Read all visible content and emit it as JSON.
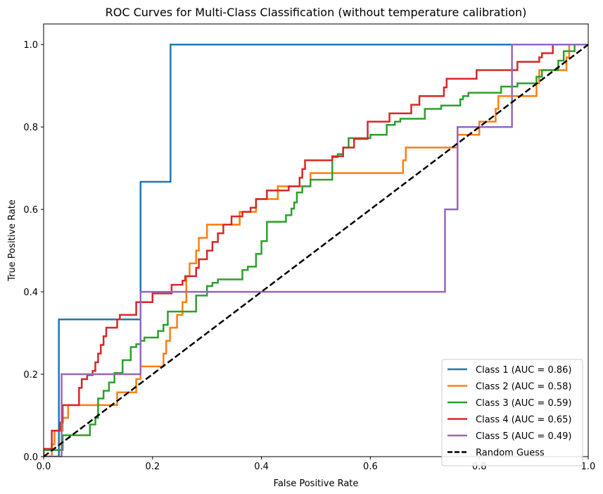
{
  "chart_data": {
    "type": "line",
    "title": "ROC Curves for Multi-Class Classification (without temperature calibration)",
    "xlabel": "False Positive Rate",
    "ylabel": "True Positive Rate",
    "xlim": [
      0,
      1
    ],
    "ylim": [
      0,
      1.05
    ],
    "xticks": [
      0,
      0.2,
      0.4,
      0.6,
      0.8,
      1
    ],
    "yticks": [
      0,
      0.2,
      0.4,
      0.6,
      0.8,
      1
    ],
    "xtick_labels": [
      "0.0",
      "0.2",
      "0.4",
      "0.6",
      "0.8",
      "1.0"
    ],
    "ytick_labels": [
      "0.0",
      "0.2",
      "0.4",
      "0.6",
      "0.8",
      "1.0"
    ],
    "grid": false,
    "legend_position": "lower-right",
    "series": [
      {
        "name": "Class 1 (AUC = 0.86)",
        "color": "#1f77b4",
        "points": [
          [
            0,
            0
          ],
          [
            0.028,
            0
          ],
          [
            0.028,
            0.333
          ],
          [
            0.178,
            0.333
          ],
          [
            0.178,
            0.667
          ],
          [
            0.233,
            0.667
          ],
          [
            0.233,
            1.0
          ],
          [
            1.0,
            1.0
          ]
        ]
      },
      {
        "name": "Class 2 (AUC = 0.58)",
        "color": "#ff7f0e",
        "points": [
          [
            0,
            0
          ],
          [
            0.015,
            0
          ],
          [
            0.015,
            0.03
          ],
          [
            0.02,
            0.03
          ],
          [
            0.02,
            0.063
          ],
          [
            0.035,
            0.063
          ],
          [
            0.035,
            0.094
          ],
          [
            0.045,
            0.094
          ],
          [
            0.045,
            0.125
          ],
          [
            0.135,
            0.125
          ],
          [
            0.135,
            0.156
          ],
          [
            0.17,
            0.156
          ],
          [
            0.17,
            0.188
          ],
          [
            0.178,
            0.188
          ],
          [
            0.178,
            0.219
          ],
          [
            0.22,
            0.219
          ],
          [
            0.22,
            0.25
          ],
          [
            0.225,
            0.25
          ],
          [
            0.225,
            0.281
          ],
          [
            0.232,
            0.281
          ],
          [
            0.232,
            0.313
          ],
          [
            0.245,
            0.313
          ],
          [
            0.245,
            0.344
          ],
          [
            0.255,
            0.344
          ],
          [
            0.255,
            0.375
          ],
          [
            0.262,
            0.375
          ],
          [
            0.262,
            0.406
          ],
          [
            0.262,
            0.406
          ],
          [
            0.262,
            0.438
          ],
          [
            0.268,
            0.438
          ],
          [
            0.268,
            0.469
          ],
          [
            0.28,
            0.469
          ],
          [
            0.28,
            0.5
          ],
          [
            0.285,
            0.5
          ],
          [
            0.285,
            0.531
          ],
          [
            0.3,
            0.531
          ],
          [
            0.3,
            0.563
          ],
          [
            0.36,
            0.563
          ],
          [
            0.36,
            0.594
          ],
          [
            0.39,
            0.594
          ],
          [
            0.39,
            0.625
          ],
          [
            0.43,
            0.625
          ],
          [
            0.43,
            0.656
          ],
          [
            0.49,
            0.656
          ],
          [
            0.49,
            0.688
          ],
          [
            0.66,
            0.688
          ],
          [
            0.66,
            0.719
          ],
          [
            0.665,
            0.719
          ],
          [
            0.665,
            0.75
          ],
          [
            0.76,
            0.75
          ],
          [
            0.76,
            0.781
          ],
          [
            0.8,
            0.781
          ],
          [
            0.8,
            0.813
          ],
          [
            0.83,
            0.813
          ],
          [
            0.83,
            0.844
          ],
          [
            0.835,
            0.844
          ],
          [
            0.835,
            0.875
          ],
          [
            0.905,
            0.875
          ],
          [
            0.905,
            0.906
          ],
          [
            0.91,
            0.906
          ],
          [
            0.91,
            0.938
          ],
          [
            0.96,
            0.938
          ],
          [
            0.96,
            0.969
          ],
          [
            0.965,
            0.969
          ],
          [
            0.965,
            1.0
          ],
          [
            1.0,
            1.0
          ]
        ]
      },
      {
        "name": "Class 3 (AUC = 0.59)",
        "color": "#2ca02c",
        "points": [
          [
            0,
            0
          ],
          [
            0.0,
            0.016
          ],
          [
            0.035,
            0.016
          ],
          [
            0.035,
            0.052
          ],
          [
            0.085,
            0.052
          ],
          [
            0.085,
            0.078
          ],
          [
            0.095,
            0.078
          ],
          [
            0.095,
            0.094
          ],
          [
            0.1,
            0.094
          ],
          [
            0.1,
            0.141
          ],
          [
            0.11,
            0.141
          ],
          [
            0.11,
            0.16
          ],
          [
            0.12,
            0.16
          ],
          [
            0.12,
            0.18
          ],
          [
            0.13,
            0.18
          ],
          [
            0.13,
            0.203
          ],
          [
            0.145,
            0.203
          ],
          [
            0.145,
            0.234
          ],
          [
            0.16,
            0.234
          ],
          [
            0.16,
            0.266
          ],
          [
            0.17,
            0.266
          ],
          [
            0.17,
            0.273
          ],
          [
            0.178,
            0.273
          ],
          [
            0.178,
            0.281
          ],
          [
            0.185,
            0.281
          ],
          [
            0.185,
            0.289
          ],
          [
            0.21,
            0.289
          ],
          [
            0.21,
            0.305
          ],
          [
            0.22,
            0.305
          ],
          [
            0.22,
            0.32
          ],
          [
            0.228,
            0.32
          ],
          [
            0.228,
            0.352
          ],
          [
            0.28,
            0.352
          ],
          [
            0.28,
            0.391
          ],
          [
            0.3,
            0.391
          ],
          [
            0.3,
            0.414
          ],
          [
            0.31,
            0.414
          ],
          [
            0.31,
            0.422
          ],
          [
            0.32,
            0.422
          ],
          [
            0.32,
            0.43
          ],
          [
            0.365,
            0.43
          ],
          [
            0.365,
            0.453
          ],
          [
            0.375,
            0.453
          ],
          [
            0.375,
            0.461
          ],
          [
            0.39,
            0.461
          ],
          [
            0.39,
            0.492
          ],
          [
            0.4,
            0.492
          ],
          [
            0.4,
            0.523
          ],
          [
            0.41,
            0.523
          ],
          [
            0.41,
            0.57
          ],
          [
            0.445,
            0.57
          ],
          [
            0.445,
            0.586
          ],
          [
            0.455,
            0.586
          ],
          [
            0.455,
            0.602
          ],
          [
            0.46,
            0.602
          ],
          [
            0.46,
            0.617
          ],
          [
            0.465,
            0.617
          ],
          [
            0.465,
            0.641
          ],
          [
            0.475,
            0.641
          ],
          [
            0.475,
            0.656
          ],
          [
            0.49,
            0.656
          ],
          [
            0.49,
            0.672
          ],
          [
            0.53,
            0.672
          ],
          [
            0.53,
            0.727
          ],
          [
            0.54,
            0.727
          ],
          [
            0.54,
            0.734
          ],
          [
            0.55,
            0.734
          ],
          [
            0.55,
            0.75
          ],
          [
            0.56,
            0.75
          ],
          [
            0.56,
            0.773
          ],
          [
            0.6,
            0.773
          ],
          [
            0.6,
            0.781
          ],
          [
            0.63,
            0.781
          ],
          [
            0.63,
            0.805
          ],
          [
            0.645,
            0.805
          ],
          [
            0.645,
            0.813
          ],
          [
            0.655,
            0.813
          ],
          [
            0.655,
            0.82
          ],
          [
            0.7,
            0.82
          ],
          [
            0.7,
            0.844
          ],
          [
            0.73,
            0.844
          ],
          [
            0.73,
            0.852
          ],
          [
            0.765,
            0.852
          ],
          [
            0.765,
            0.867
          ],
          [
            0.77,
            0.867
          ],
          [
            0.77,
            0.875
          ],
          [
            0.78,
            0.875
          ],
          [
            0.78,
            0.883
          ],
          [
            0.84,
            0.883
          ],
          [
            0.84,
            0.898
          ],
          [
            0.87,
            0.898
          ],
          [
            0.87,
            0.906
          ],
          [
            0.905,
            0.906
          ],
          [
            0.905,
            0.922
          ],
          [
            0.915,
            0.922
          ],
          [
            0.915,
            0.938
          ],
          [
            0.945,
            0.938
          ],
          [
            0.945,
            0.961
          ],
          [
            0.955,
            0.961
          ],
          [
            0.955,
            0.984
          ],
          [
            0.975,
            0.984
          ],
          [
            0.975,
            1.0
          ],
          [
            1.0,
            1.0
          ]
        ]
      },
      {
        "name": "Class 4 (AUC = 0.65)",
        "color": "#d62728",
        "points": [
          [
            0,
            0
          ],
          [
            0.0,
            0.019
          ],
          [
            0.015,
            0.019
          ],
          [
            0.015,
            0.063
          ],
          [
            0.03,
            0.063
          ],
          [
            0.03,
            0.083
          ],
          [
            0.035,
            0.083
          ],
          [
            0.035,
            0.125
          ],
          [
            0.065,
            0.125
          ],
          [
            0.065,
            0.167
          ],
          [
            0.07,
            0.167
          ],
          [
            0.07,
            0.188
          ],
          [
            0.08,
            0.188
          ],
          [
            0.08,
            0.198
          ],
          [
            0.09,
            0.198
          ],
          [
            0.09,
            0.208
          ],
          [
            0.095,
            0.208
          ],
          [
            0.095,
            0.229
          ],
          [
            0.1,
            0.229
          ],
          [
            0.1,
            0.25
          ],
          [
            0.105,
            0.25
          ],
          [
            0.105,
            0.271
          ],
          [
            0.11,
            0.271
          ],
          [
            0.11,
            0.292
          ],
          [
            0.115,
            0.292
          ],
          [
            0.115,
            0.313
          ],
          [
            0.135,
            0.313
          ],
          [
            0.135,
            0.333
          ],
          [
            0.14,
            0.333
          ],
          [
            0.14,
            0.344
          ],
          [
            0.17,
            0.344
          ],
          [
            0.17,
            0.375
          ],
          [
            0.2,
            0.375
          ],
          [
            0.2,
            0.396
          ],
          [
            0.235,
            0.396
          ],
          [
            0.235,
            0.417
          ],
          [
            0.255,
            0.417
          ],
          [
            0.255,
            0.427
          ],
          [
            0.26,
            0.427
          ],
          [
            0.26,
            0.438
          ],
          [
            0.28,
            0.438
          ],
          [
            0.28,
            0.458
          ],
          [
            0.285,
            0.458
          ],
          [
            0.285,
            0.479
          ],
          [
            0.3,
            0.479
          ],
          [
            0.3,
            0.5
          ],
          [
            0.31,
            0.5
          ],
          [
            0.31,
            0.521
          ],
          [
            0.32,
            0.521
          ],
          [
            0.32,
            0.542
          ],
          [
            0.33,
            0.542
          ],
          [
            0.33,
            0.563
          ],
          [
            0.345,
            0.563
          ],
          [
            0.345,
            0.583
          ],
          [
            0.365,
            0.583
          ],
          [
            0.365,
            0.594
          ],
          [
            0.38,
            0.594
          ],
          [
            0.38,
            0.604
          ],
          [
            0.39,
            0.604
          ],
          [
            0.39,
            0.625
          ],
          [
            0.41,
            0.625
          ],
          [
            0.41,
            0.646
          ],
          [
            0.45,
            0.646
          ],
          [
            0.45,
            0.656
          ],
          [
            0.47,
            0.656
          ],
          [
            0.47,
            0.677
          ],
          [
            0.475,
            0.677
          ],
          [
            0.475,
            0.698
          ],
          [
            0.48,
            0.698
          ],
          [
            0.48,
            0.719
          ],
          [
            0.53,
            0.719
          ],
          [
            0.53,
            0.729
          ],
          [
            0.55,
            0.729
          ],
          [
            0.55,
            0.75
          ],
          [
            0.57,
            0.75
          ],
          [
            0.57,
            0.771
          ],
          [
            0.595,
            0.771
          ],
          [
            0.595,
            0.813
          ],
          [
            0.635,
            0.813
          ],
          [
            0.635,
            0.833
          ],
          [
            0.675,
            0.833
          ],
          [
            0.675,
            0.854
          ],
          [
            0.69,
            0.854
          ],
          [
            0.69,
            0.875
          ],
          [
            0.735,
            0.875
          ],
          [
            0.735,
            0.896
          ],
          [
            0.74,
            0.896
          ],
          [
            0.74,
            0.917
          ],
          [
            0.795,
            0.917
          ],
          [
            0.795,
            0.938
          ],
          [
            0.87,
            0.938
          ],
          [
            0.87,
            0.958
          ],
          [
            0.91,
            0.958
          ],
          [
            0.91,
            0.969
          ],
          [
            0.915,
            0.969
          ],
          [
            0.915,
            0.979
          ],
          [
            0.935,
            0.979
          ],
          [
            0.935,
            1.0
          ],
          [
            1.0,
            1.0
          ]
        ]
      },
      {
        "name": "Class 5 (AUC = 0.49)",
        "color": "#9467bd",
        "points": [
          [
            0,
            0
          ],
          [
            0.033,
            0
          ],
          [
            0.033,
            0.2
          ],
          [
            0.178,
            0.2
          ],
          [
            0.178,
            0.4
          ],
          [
            0.737,
            0.4
          ],
          [
            0.737,
            0.6
          ],
          [
            0.76,
            0.6
          ],
          [
            0.76,
            0.8
          ],
          [
            0.86,
            0.8
          ],
          [
            0.86,
            1.0
          ],
          [
            1.0,
            1.0
          ]
        ]
      },
      {
        "name": "Random Guess",
        "color": "#000000",
        "dashed": true,
        "points": [
          [
            0,
            0
          ],
          [
            1,
            1
          ]
        ]
      }
    ]
  }
}
